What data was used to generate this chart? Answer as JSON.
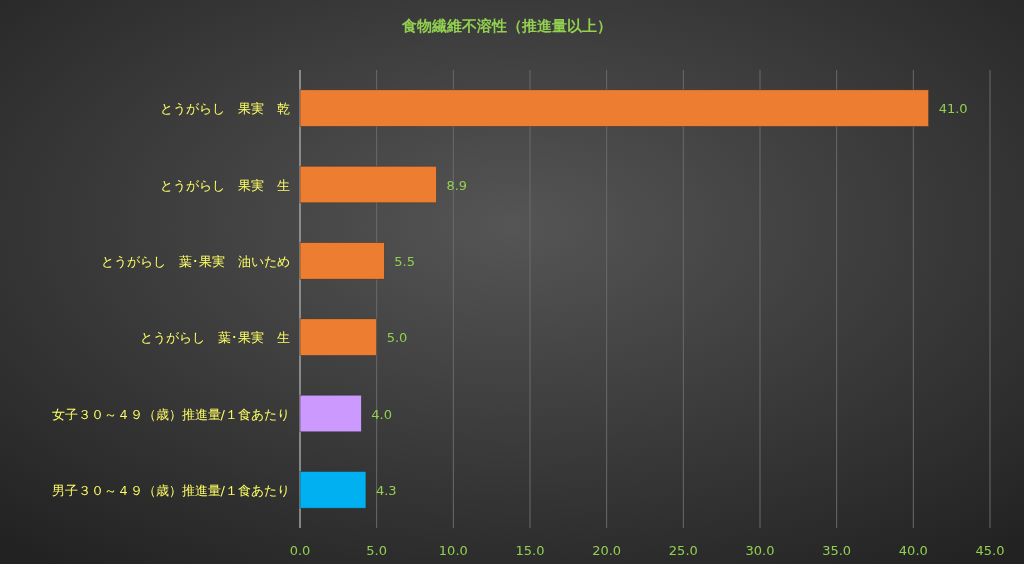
{
  "chart_data": {
    "type": "bar",
    "orientation": "horizontal",
    "title": "食物繊維不溶性（推進量以上）",
    "categories": [
      "とうがらし　果実　乾",
      "とうがらし　果実　生",
      "とうがらし　葉･果実　油いため",
      "とうがらし　葉･果実　生",
      "女子３０～４９（歳）推進量/１食あたり",
      "男子３０～４９（歳）推進量/１食あたり"
    ],
    "values": [
      41.0,
      8.9,
      5.5,
      5.0,
      4.0,
      4.3
    ],
    "value_labels": [
      "41.0",
      "8.9",
      "5.5",
      "5.0",
      "4.0",
      "4.3"
    ],
    "colors": [
      "#ed7d31",
      "#ed7d31",
      "#ed7d31",
      "#ed7d31",
      "#cc99ff",
      "#00b0f0"
    ],
    "xlim": [
      0,
      45
    ],
    "xticks": [
      {
        "value": 0,
        "label": "0.0"
      },
      {
        "value": 5,
        "label": "5.0"
      },
      {
        "value": 10,
        "label": "10.0"
      },
      {
        "value": 15,
        "label": "15.0"
      },
      {
        "value": 20,
        "label": "20.0"
      },
      {
        "value": 25,
        "label": "25.0"
      },
      {
        "value": 30,
        "label": "30.0"
      },
      {
        "value": 35,
        "label": "35.0"
      },
      {
        "value": 40,
        "label": "40.0"
      },
      {
        "value": 45,
        "label": "45.0"
      }
    ],
    "grid": "x"
  }
}
